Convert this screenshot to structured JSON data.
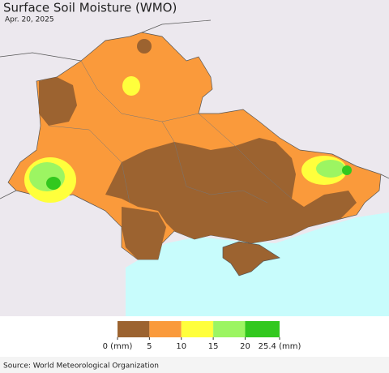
{
  "header": {
    "title": "Surface Soil Moisture (WMO)",
    "date": "Apr. 20, 2025"
  },
  "legend": {
    "colors": [
      "#9c6330",
      "#fa9a3b",
      "#ffff3c",
      "#9cf562",
      "#32c81e"
    ],
    "ticks": [
      {
        "value": 0,
        "label": "0 (mm)"
      },
      5,
      10,
      15,
      20,
      {
        "value": 25.4,
        "label": "25.4 (mm)"
      }
    ]
  },
  "footer": {
    "source": "Source: World Meteorological Organization"
  }
}
